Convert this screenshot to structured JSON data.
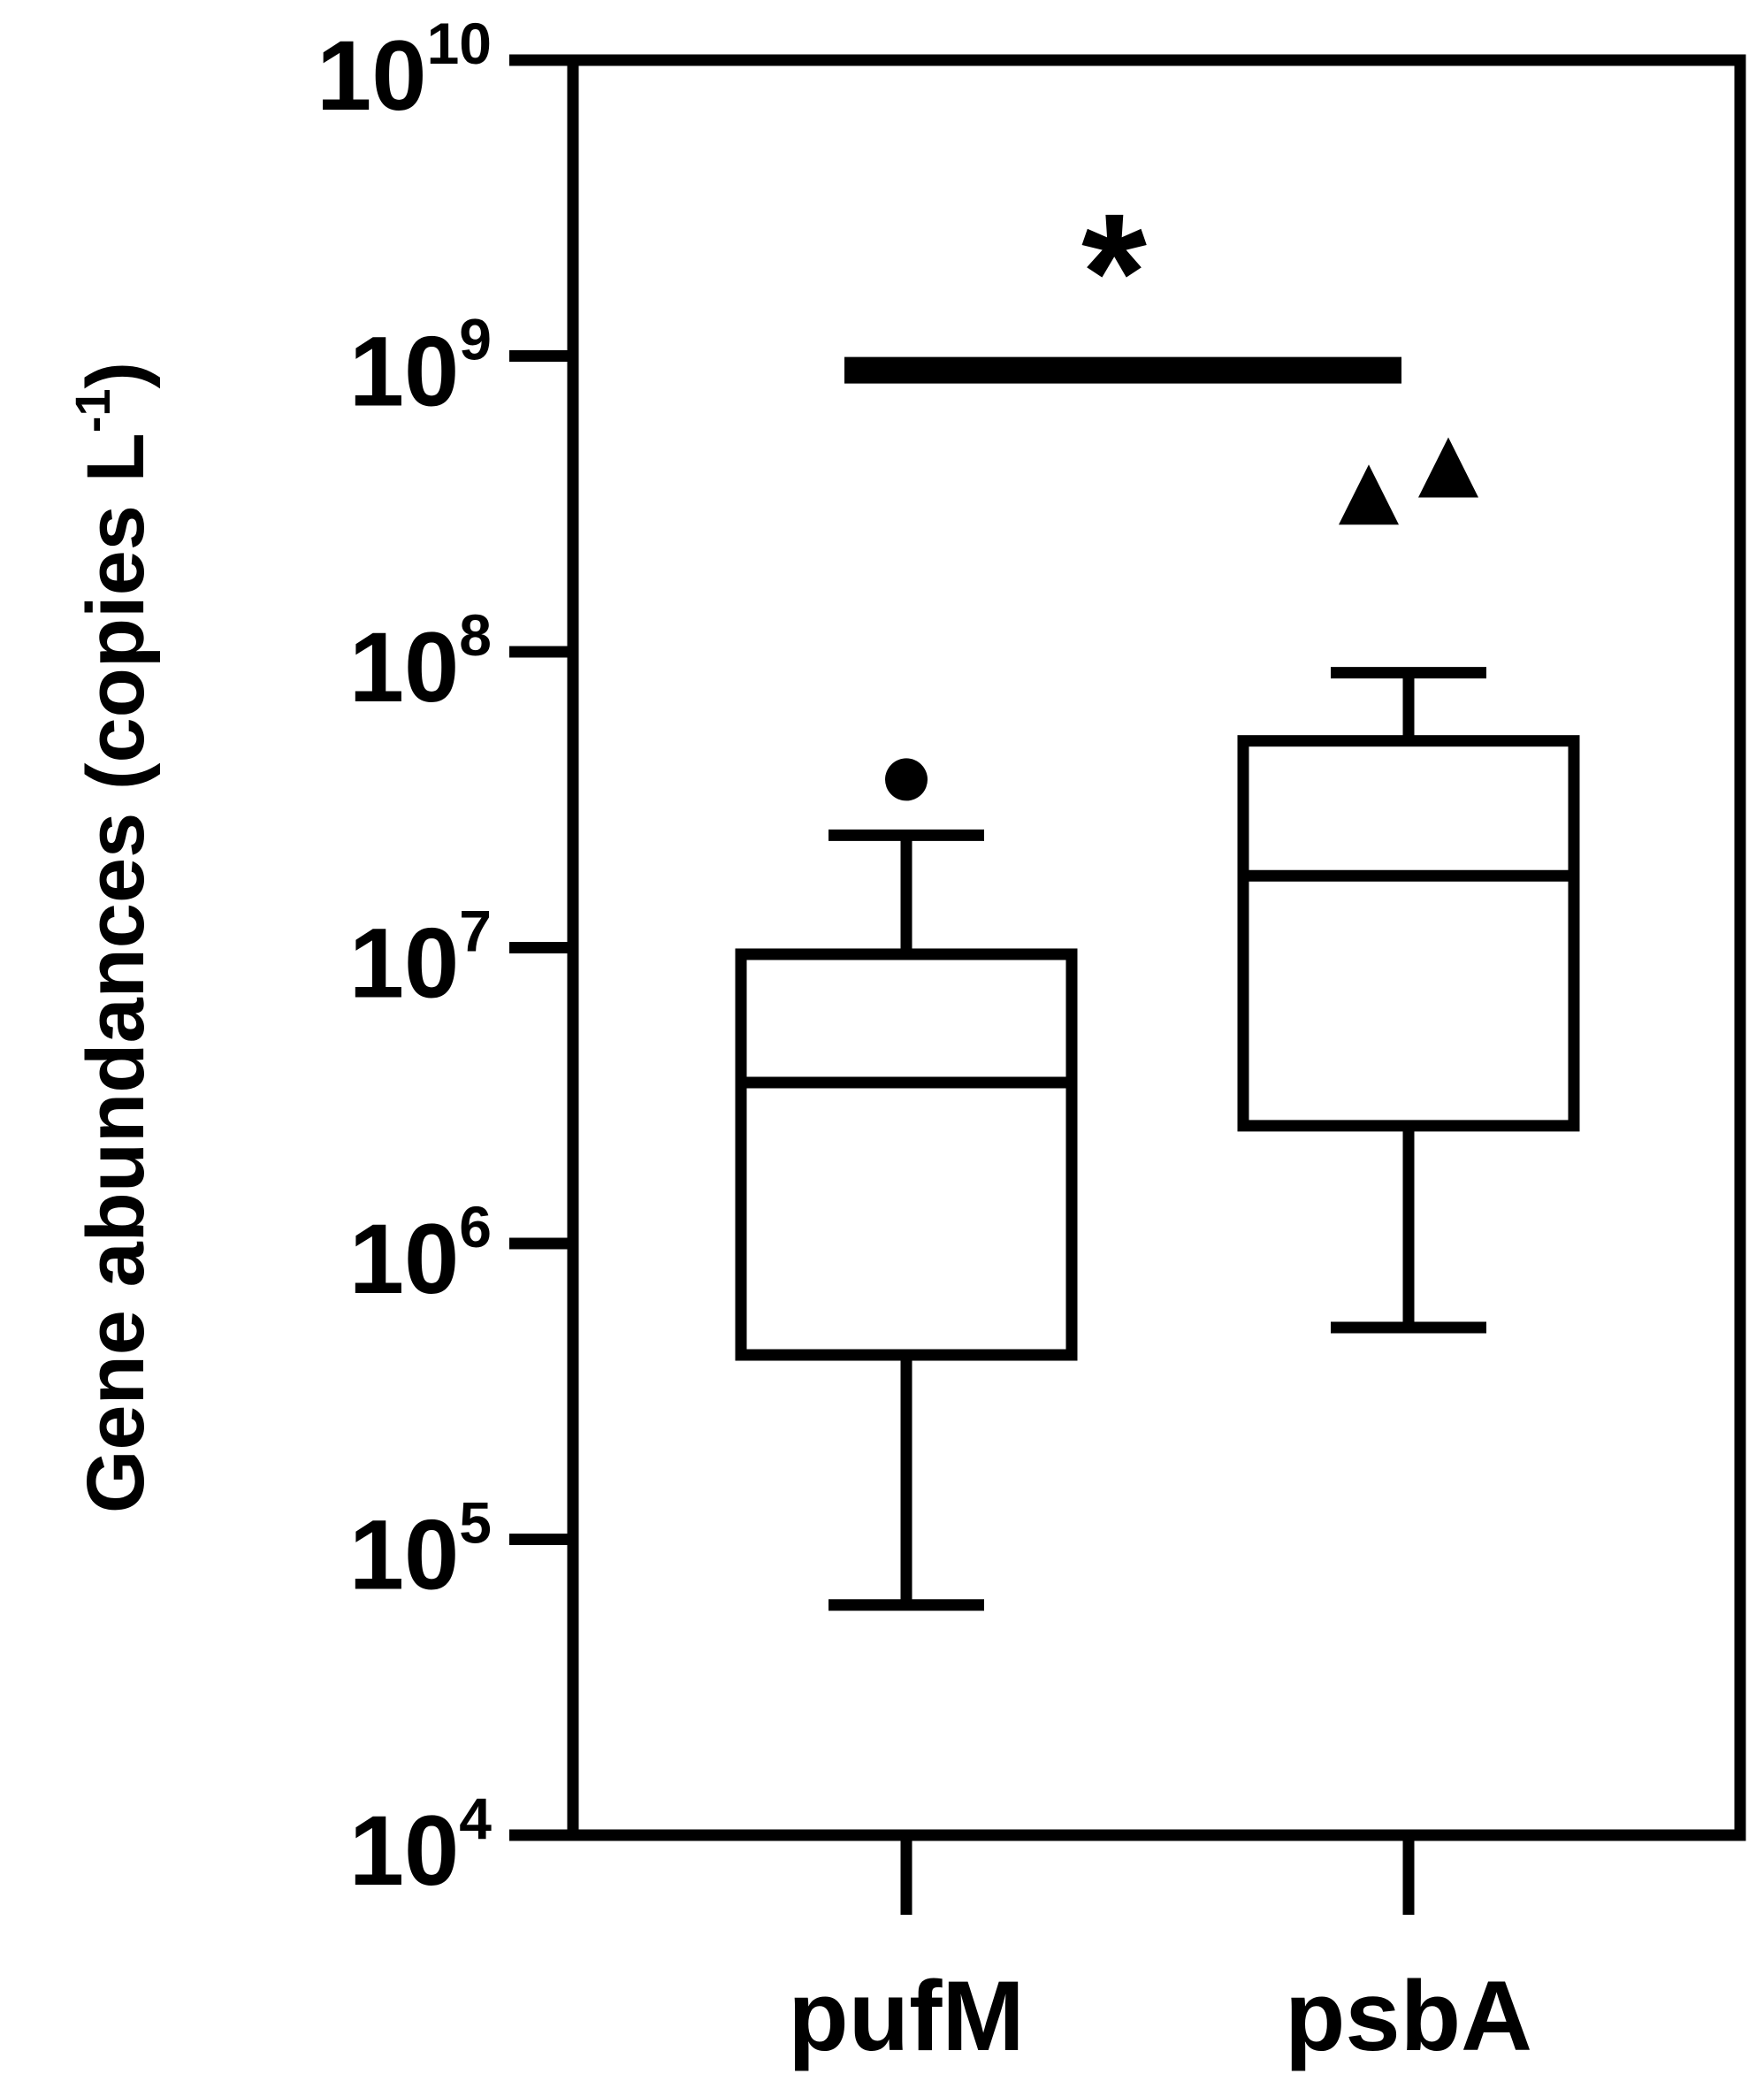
{
  "chart_data": {
    "type": "box",
    "ylabel": "Gene abundances (copies L",
    "ylabel_superscript": "-1",
    "ylabel_suffix": ")",
    "y_scale": "log",
    "ylim": [
      10000,
      10000000000
    ],
    "y_ticks": [
      {
        "value": 10000,
        "base": "10",
        "exponent": "4"
      },
      {
        "value": 100000,
        "base": "10",
        "exponent": "5"
      },
      {
        "value": 1000000,
        "base": "10",
        "exponent": "6"
      },
      {
        "value": 10000000,
        "base": "10",
        "exponent": "7"
      },
      {
        "value": 100000000,
        "base": "10",
        "exponent": "8"
      },
      {
        "value": 1000000000,
        "base": "10",
        "exponent": "9"
      },
      {
        "value": 10000000000,
        "base": "10",
        "exponent": "10"
      }
    ],
    "categories": [
      "pufM",
      "psbA"
    ],
    "boxes": [
      {
        "category": "pufM",
        "whisker_low": 60000,
        "q1": 420000,
        "median": 3500000,
        "q3": 9500000,
        "whisker_high": 24000000,
        "outliers": [
          37000000
        ],
        "outlier_marker": "circle"
      },
      {
        "category": "psbA",
        "whisker_low": 520000,
        "q1": 2500000,
        "median": 17500000,
        "q3": 50000000,
        "whisker_high": 85000000,
        "outliers": [
          340000000,
          420000000
        ],
        "outlier_marker": "triangle"
      }
    ],
    "significance": {
      "from": "pufM",
      "to": "psbA",
      "y_value": 1100000000,
      "label": "*"
    },
    "grid": false,
    "legend": "none"
  }
}
